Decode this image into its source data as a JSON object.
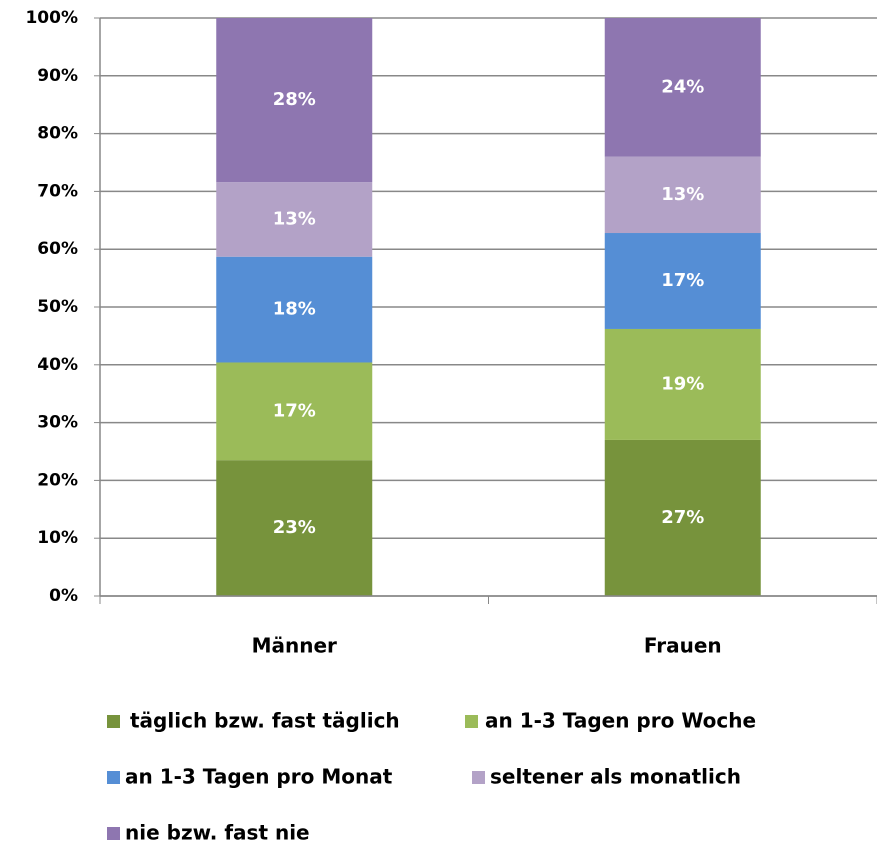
{
  "chart_data": {
    "type": "stacked_bar",
    "categories": [
      "Männer",
      "Frauen"
    ],
    "series": [
      {
        "name": "täglich bzw. fast täglich",
        "color": "#77933c",
        "values": [
          23.5,
          27.0
        ],
        "value_labels": [
          "23%",
          "27%"
        ]
      },
      {
        "name": "an 1-3 Tagen pro Woche",
        "color": "#9bbb59",
        "values": [
          16.9,
          19.2
        ],
        "value_labels": [
          "17%",
          "19%"
        ]
      },
      {
        "name": "an 1-3 Tagen pro Monat",
        "color": "#558ed5",
        "values": [
          18.3,
          16.6
        ],
        "value_labels": [
          "18%",
          "17%"
        ]
      },
      {
        "name": "seltener als monatlich",
        "color": "#b3a2c7",
        "values": [
          12.9,
          13.2
        ],
        "value_labels": [
          "13%",
          "13%"
        ]
      },
      {
        "name": "nie bzw. fast nie",
        "color": "#8e76b0",
        "values": [
          28.4,
          24.0
        ],
        "value_labels": [
          "28%",
          "24%"
        ]
      }
    ],
    "ylim": [
      0,
      100
    ],
    "yticks": [
      {
        "value": 0,
        "label": "0%"
      },
      {
        "value": 10,
        "label": "10%"
      },
      {
        "value": 20,
        "label": "20%"
      },
      {
        "value": 30,
        "label": "30%"
      },
      {
        "value": 40,
        "label": "40%"
      },
      {
        "value": 50,
        "label": "50%"
      },
      {
        "value": 60,
        "label": "60%"
      },
      {
        "value": 70,
        "label": "70%"
      },
      {
        "value": 80,
        "label": "80%"
      },
      {
        "value": 90,
        "label": "90%"
      },
      {
        "value": 100,
        "label": "100%"
      }
    ],
    "grid": true,
    "legend": "bottom"
  }
}
